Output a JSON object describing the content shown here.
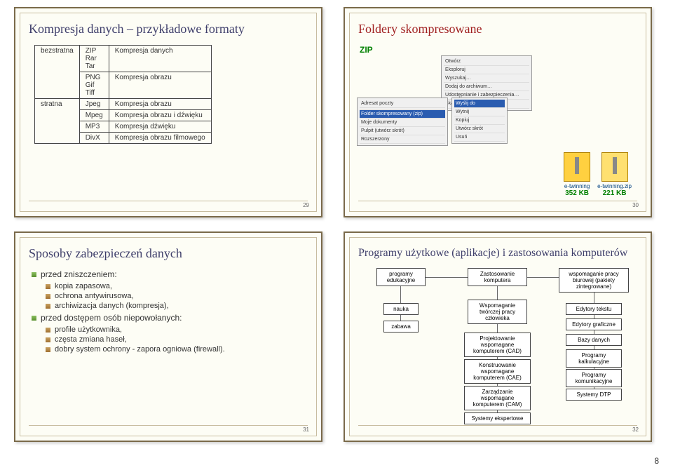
{
  "global_page": "8",
  "slide29": {
    "title": "Kompresja danych – przykładowe formaty",
    "page": "29",
    "rows": [
      {
        "c0": "bezstratna",
        "c1": "ZIP\nRar\nTar",
        "c2": "Kompresja danych"
      },
      {
        "c0": "",
        "c1": "PNG\nGif\nTiff",
        "c2": "Kompresja obrazu"
      },
      {
        "c0": "stratna",
        "c1": "Jpeg",
        "c2": "Kompresja obrazu"
      },
      {
        "c0": "",
        "c1": "Mpeg",
        "c2": "Kompresja obrazu i dźwięku"
      },
      {
        "c0": "",
        "c1": "MP3",
        "c2": "Kompresja dźwięku"
      },
      {
        "c0": "",
        "c1": "DivX",
        "c2": "Kompresja obrazu filmowego"
      }
    ]
  },
  "slide30": {
    "title": "Foldery skompresowane",
    "zip": "ZIP",
    "page": "30",
    "menu1_items": [
      "Otwórz",
      "Eksploruj",
      "Wyszukaj…",
      "Dodaj do archiwum…",
      "Udostępnianie i zabezpieczenia…",
      "Skanuj e-twinning"
    ],
    "menu2_items": [
      "Adresat poczty",
      "",
      "Folder skompresowany (zip)",
      "Moje dokumenty",
      "Pulpit (utwórz skrót)",
      "Rozszerzony"
    ],
    "menu3_label": "Wyślij do",
    "menu3_items": [
      "Wytnij",
      "Kopiuj",
      "Utwórz skrót",
      "Usuń"
    ],
    "file1_name": "e-twinning",
    "file1_size": "352 KB",
    "file2_name": "e-twinning.zip",
    "file2_size": "221 KB"
  },
  "slide31": {
    "title": "Sposoby zabezpieczeń danych",
    "page": "31",
    "b1": "przed zniszczeniem:",
    "b1_items": [
      "kopia zapasowa,",
      "ochrona antywirusowa,",
      "archiwizacja danych (kompresja),"
    ],
    "b2": "przed dostępem osób niepowołanych:",
    "b2_items": [
      "profile użytkownika,",
      "częsta zmiana haseł,",
      "dobry system ochrony - zapora ogniowa (firewall)."
    ]
  },
  "slide32": {
    "title": "Programy użytkowe (aplikacje) i zastosowania komputerów",
    "page": "32",
    "nodes": {
      "programy_edu": "programy\nedukacyjne",
      "zastosowanie": "Zastosowanie\nkomputera",
      "wspom_pracy": "wspomaganie pracy\nbiurowej (pakiety\nzintegrowane)",
      "nauka": "nauka",
      "wspom_tw": "Wspomaganie\ntwórczej pracy\nczłowieka",
      "edytory_t": "Edytory tekstu",
      "zabawa": "zabawa",
      "edytory_g": "Edytory graficzne",
      "cad": "Projektowanie\nwspomagane\nkomputerem (CAD)",
      "bazy": "Bazy danych",
      "cae": "Konstruowanie\nwspomagane\nkomputerem (CAE)",
      "kalk": "Programy\nkalkulacyjne",
      "cam": "Zarządzanie\nwspomagane\nkomputerem (CAM)",
      "komun": "Programy\nkomunikacyjne",
      "dtp": "Systemy DTP",
      "eksp": "Systemy ekspertowe"
    }
  }
}
